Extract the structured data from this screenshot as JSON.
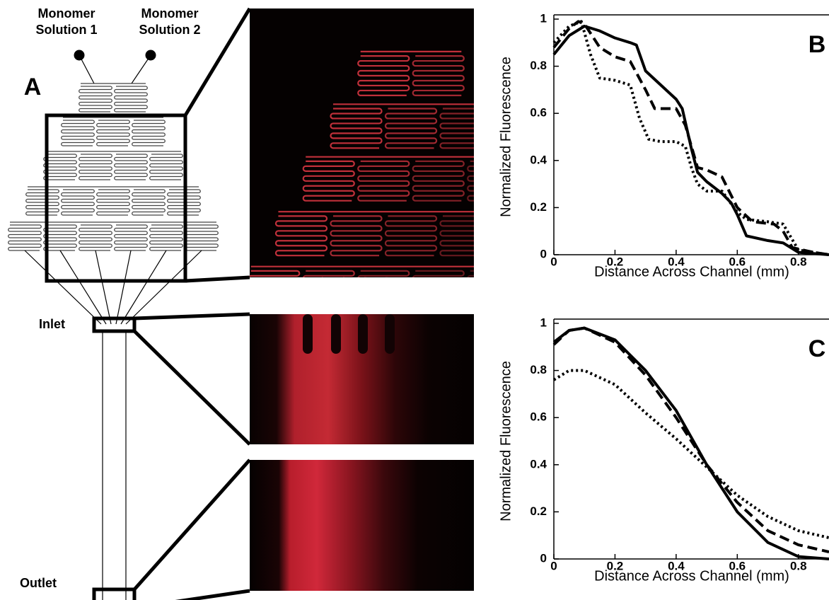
{
  "figure": {
    "panel": "A",
    "monomer_1": [
      "Monomer",
      "Solution 1"
    ],
    "monomer_2": [
      "Monomer",
      "Solution 2"
    ],
    "inlet": "Inlet",
    "outlet": "Outlet"
  },
  "chart_data": [
    {
      "type": "line",
      "label": "B",
      "xlabel": "Distance Across Channel (mm)",
      "ylabel": "Normalized Fluorescence",
      "xlim": [
        0,
        0.9
      ],
      "ylim": [
        0,
        1
      ],
      "xticks": [
        0,
        0.2,
        0.4,
        0.6,
        0.8
      ],
      "yticks": [
        0,
        0.2,
        0.4,
        0.6,
        0.8,
        1
      ],
      "series": [
        {
          "color": "#000",
          "dash": "solid",
          "x": [
            0,
            0.05,
            0.1,
            0.15,
            0.2,
            0.25,
            0.27,
            0.3,
            0.35,
            0.4,
            0.42,
            0.45,
            0.47,
            0.5,
            0.55,
            0.58,
            0.6,
            0.63,
            0.7,
            0.75,
            0.8,
            0.9
          ],
          "values": [
            0.85,
            0.93,
            0.97,
            0.95,
            0.92,
            0.9,
            0.89,
            0.78,
            0.72,
            0.66,
            0.62,
            0.45,
            0.35,
            0.31,
            0.26,
            0.22,
            0.17,
            0.08,
            0.06,
            0.05,
            0.01,
            0
          ]
        },
        {
          "color": "#000",
          "dash": "dashed",
          "x": [
            0,
            0.05,
            0.08,
            0.1,
            0.15,
            0.2,
            0.25,
            0.3,
            0.33,
            0.4,
            0.43,
            0.47,
            0.5,
            0.55,
            0.6,
            0.65,
            0.72,
            0.75,
            0.78,
            0.85,
            0.9
          ],
          "values": [
            0.88,
            0.96,
            0.99,
            0.98,
            0.88,
            0.84,
            0.82,
            0.7,
            0.62,
            0.62,
            0.55,
            0.37,
            0.36,
            0.33,
            0.2,
            0.14,
            0.13,
            0.1,
            0.03,
            0.01,
            0
          ]
        },
        {
          "color": "#000",
          "dash": "dotted",
          "x": [
            0,
            0.05,
            0.09,
            0.12,
            0.15,
            0.2,
            0.25,
            0.28,
            0.31,
            0.35,
            0.4,
            0.43,
            0.45,
            0.47,
            0.5,
            0.55,
            0.6,
            0.63,
            0.7,
            0.75,
            0.8,
            0.9
          ],
          "values": [
            0.9,
            0.97,
            0.99,
            0.85,
            0.75,
            0.74,
            0.72,
            0.58,
            0.49,
            0.48,
            0.48,
            0.46,
            0.37,
            0.3,
            0.27,
            0.27,
            0.18,
            0.15,
            0.14,
            0.13,
            0.02,
            0
          ]
        }
      ]
    },
    {
      "type": "line",
      "label": "C",
      "xlabel": "Distance Across Channel (mm)",
      "ylabel": "Normalized Fluorescence",
      "xlim": [
        0,
        0.9
      ],
      "ylim": [
        0,
        1
      ],
      "xticks": [
        0,
        0.2,
        0.4,
        0.6,
        0.8
      ],
      "yticks": [
        0,
        0.2,
        0.4,
        0.6,
        0.8,
        1
      ],
      "series": [
        {
          "color": "#000",
          "dash": "solid",
          "x": [
            0,
            0.05,
            0.1,
            0.2,
            0.3,
            0.4,
            0.5,
            0.6,
            0.7,
            0.8,
            0.9
          ],
          "values": [
            0.92,
            0.97,
            0.98,
            0.93,
            0.8,
            0.63,
            0.4,
            0.2,
            0.07,
            0.01,
            0
          ]
        },
        {
          "color": "#000",
          "dash": "dashed",
          "x": [
            0,
            0.05,
            0.1,
            0.2,
            0.3,
            0.4,
            0.5,
            0.6,
            0.7,
            0.8,
            0.9
          ],
          "values": [
            0.91,
            0.97,
            0.98,
            0.92,
            0.78,
            0.6,
            0.4,
            0.24,
            0.12,
            0.06,
            0.03
          ]
        },
        {
          "color": "#000",
          "dash": "dotted",
          "x": [
            0,
            0.05,
            0.1,
            0.2,
            0.3,
            0.4,
            0.5,
            0.6,
            0.7,
            0.8,
            0.9
          ],
          "values": [
            0.76,
            0.8,
            0.8,
            0.74,
            0.62,
            0.51,
            0.39,
            0.27,
            0.18,
            0.12,
            0.09
          ]
        }
      ]
    }
  ]
}
